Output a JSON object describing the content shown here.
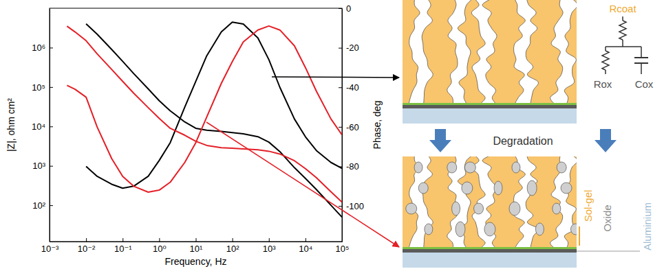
{
  "chart_data": {
    "type": "line",
    "log": true,
    "x_label": "Frequency, Hz",
    "y_label": "|Z|, ohm cm²",
    "y2_label": "Phase, deg",
    "x": [
      0.003,
      0.005,
      0.01,
      0.02,
      0.05,
      0.1,
      0.2,
      0.5,
      1,
      2,
      5,
      10,
      20,
      50,
      100,
      200,
      500,
      1000,
      2000,
      5000,
      10000,
      20000,
      50000,
      100000
    ],
    "xlim": [
      0.001,
      100000
    ],
    "ylim": [
      12,
      10000000
    ],
    "y2lim": [
      -118,
      0
    ],
    "xticks": [
      {
        "value": 0.001,
        "label": "10⁻³"
      },
      {
        "value": 0.01,
        "label": "10⁻²"
      },
      {
        "value": 0.1,
        "label": "10⁻¹"
      },
      {
        "value": 1,
        "label": "10⁰"
      },
      {
        "value": 10,
        "label": "10¹"
      },
      {
        "value": 100,
        "label": "10²"
      },
      {
        "value": 1000,
        "label": "10³"
      },
      {
        "value": 10000,
        "label": "10⁴"
      },
      {
        "value": 100000,
        "label": "10⁵"
      }
    ],
    "yticks": [
      {
        "value": 100,
        "label": "10²"
      },
      {
        "value": 1000,
        "label": "10³"
      },
      {
        "value": 10000,
        "label": "10⁴"
      },
      {
        "value": 100000,
        "label": "10⁵"
      },
      {
        "value": 1000000,
        "label": "10⁶"
      }
    ],
    "y2ticks": [
      -100,
      -80,
      -60,
      -40,
      -20,
      0
    ],
    "series": [
      {
        "color": "#000000",
        "values": [
          null,
          null,
          4000000,
          2200000,
          900000,
          450000,
          220000,
          90000,
          45000,
          25000,
          13000,
          9000,
          8000,
          7500,
          7000,
          6500,
          5500,
          4000,
          2300,
          900,
          480,
          250,
          100,
          50
        ]
      },
      {
        "color": "#000000",
        "axis": "y2",
        "values": [
          null,
          null,
          -80,
          -85,
          -89,
          -91,
          -90,
          -85,
          -77,
          -68,
          -50,
          -37,
          -24,
          -12,
          -7,
          -8,
          -15,
          -26,
          -40,
          -56,
          -65,
          -72,
          -78,
          -81
        ]
      },
      {
        "color": "#e41f26",
        "values": [
          3500000,
          2500000,
          1500000,
          700000,
          280000,
          140000,
          70000,
          30000,
          16000,
          9000,
          6000,
          4200,
          3300,
          2900,
          2800,
          2700,
          2550,
          2350,
          2000,
          1350,
          850,
          500,
          220,
          120
        ]
      },
      {
        "color": "#e41f26",
        "axis": "y2",
        "values": [
          -39,
          -41,
          -45,
          -60,
          -76,
          -85,
          -90,
          -93,
          -92,
          -88,
          -78,
          -68,
          -55,
          -38,
          -27,
          -17,
          -11,
          -9,
          -11,
          -19,
          -30,
          -42,
          -56,
          -64
        ]
      }
    ]
  },
  "diagram": {
    "circuit": {
      "r_coat": "Rcoat",
      "r_ox": "Rox",
      "c_ox": "Cox"
    },
    "process": "Degradation",
    "layers": [
      "Sol-gel",
      "Oxide",
      "Aluminium"
    ]
  }
}
